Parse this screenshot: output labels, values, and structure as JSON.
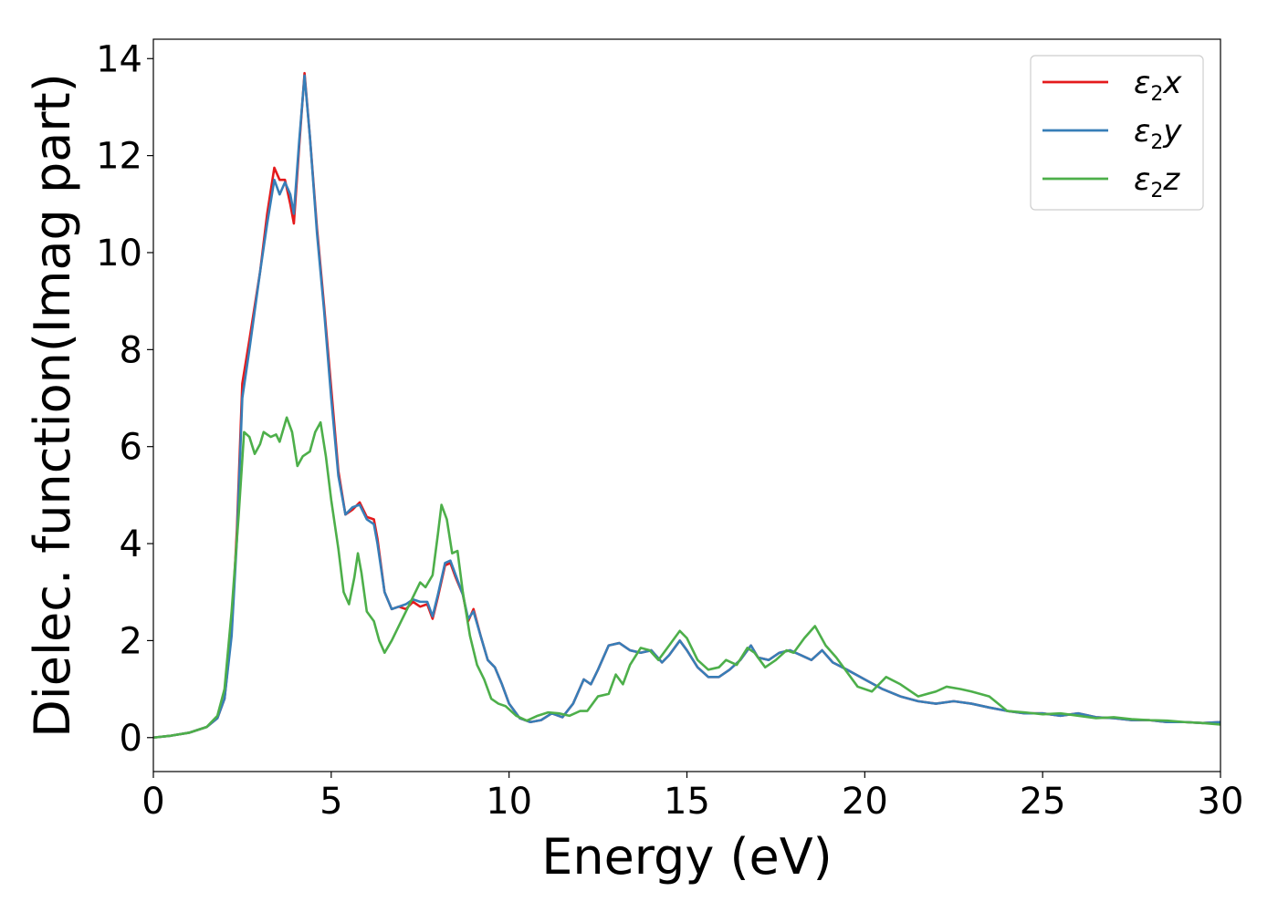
{
  "chart_data": {
    "type": "line",
    "title": "",
    "xlabel": "Energy (eV)",
    "ylabel": "Dielec. function(Imag part)",
    "xlim": [
      0,
      30
    ],
    "ylim": [
      -0.7,
      14.4
    ],
    "xticks": [
      0,
      5,
      10,
      15,
      20,
      25,
      30
    ],
    "yticks": [
      0,
      2,
      4,
      6,
      8,
      10,
      12,
      14
    ],
    "grid": false,
    "legend_position": "top-right",
    "series": [
      {
        "name": "ε2x",
        "legend_base": "ε",
        "legend_sub": "2",
        "legend_tail": "x",
        "color": "#e41a1c",
        "points": [
          [
            0,
            0
          ],
          [
            0.5,
            0.04
          ],
          [
            1.0,
            0.1
          ],
          [
            1.5,
            0.22
          ],
          [
            1.8,
            0.4
          ],
          [
            2.0,
            0.8
          ],
          [
            2.2,
            2.2
          ],
          [
            2.35,
            4.3
          ],
          [
            2.5,
            7.3
          ],
          [
            2.7,
            8.2
          ],
          [
            3.0,
            9.6
          ],
          [
            3.2,
            10.8
          ],
          [
            3.4,
            11.75
          ],
          [
            3.55,
            11.5
          ],
          [
            3.7,
            11.5
          ],
          [
            3.85,
            11.0
          ],
          [
            3.95,
            10.6
          ],
          [
            4.1,
            12.2
          ],
          [
            4.25,
            13.7
          ],
          [
            4.4,
            12.4
          ],
          [
            4.6,
            10.5
          ],
          [
            4.8,
            8.9
          ],
          [
            5.0,
            7.2
          ],
          [
            5.2,
            5.5
          ],
          [
            5.4,
            4.6
          ],
          [
            5.6,
            4.7
          ],
          [
            5.8,
            4.85
          ],
          [
            6.0,
            4.55
          ],
          [
            6.2,
            4.5
          ],
          [
            6.3,
            4.1
          ],
          [
            6.5,
            3.0
          ],
          [
            6.7,
            2.65
          ],
          [
            6.9,
            2.7
          ],
          [
            7.1,
            2.65
          ],
          [
            7.3,
            2.8
          ],
          [
            7.5,
            2.7
          ],
          [
            7.7,
            2.75
          ],
          [
            7.85,
            2.45
          ],
          [
            8.0,
            2.9
          ],
          [
            8.2,
            3.55
          ],
          [
            8.35,
            3.6
          ],
          [
            8.5,
            3.3
          ],
          [
            8.7,
            2.95
          ],
          [
            8.85,
            2.4
          ],
          [
            9.0,
            2.65
          ],
          [
            9.2,
            2.1
          ],
          [
            9.4,
            1.6
          ],
          [
            9.6,
            1.45
          ],
          [
            9.8,
            1.1
          ],
          [
            10.0,
            0.7
          ],
          [
            10.3,
            0.4
          ],
          [
            10.6,
            0.32
          ],
          [
            10.9,
            0.36
          ],
          [
            11.2,
            0.5
          ],
          [
            11.5,
            0.42
          ],
          [
            11.8,
            0.7
          ],
          [
            12.1,
            1.2
          ],
          [
            12.3,
            1.1
          ],
          [
            12.5,
            1.4
          ],
          [
            12.8,
            1.9
          ],
          [
            13.1,
            1.95
          ],
          [
            13.4,
            1.8
          ],
          [
            13.7,
            1.75
          ],
          [
            14.0,
            1.8
          ],
          [
            14.3,
            1.55
          ],
          [
            14.5,
            1.7
          ],
          [
            14.8,
            2.0
          ],
          [
            15.0,
            1.8
          ],
          [
            15.3,
            1.45
          ],
          [
            15.6,
            1.25
          ],
          [
            15.9,
            1.25
          ],
          [
            16.2,
            1.4
          ],
          [
            16.5,
            1.6
          ],
          [
            16.8,
            1.9
          ],
          [
            17.0,
            1.65
          ],
          [
            17.3,
            1.6
          ],
          [
            17.6,
            1.75
          ],
          [
            17.9,
            1.8
          ],
          [
            18.2,
            1.7
          ],
          [
            18.5,
            1.6
          ],
          [
            18.8,
            1.8
          ],
          [
            19.1,
            1.55
          ],
          [
            19.5,
            1.4
          ],
          [
            20.0,
            1.2
          ],
          [
            20.5,
            1.0
          ],
          [
            21.0,
            0.85
          ],
          [
            21.5,
            0.75
          ],
          [
            22.0,
            0.7
          ],
          [
            22.5,
            0.75
          ],
          [
            23.0,
            0.7
          ],
          [
            23.5,
            0.62
          ],
          [
            24.0,
            0.55
          ],
          [
            24.5,
            0.5
          ],
          [
            25.0,
            0.5
          ],
          [
            25.5,
            0.45
          ],
          [
            26.0,
            0.5
          ],
          [
            26.5,
            0.42
          ],
          [
            27.0,
            0.4
          ],
          [
            27.5,
            0.36
          ],
          [
            28.0,
            0.36
          ],
          [
            28.5,
            0.32
          ],
          [
            29.0,
            0.32
          ],
          [
            29.5,
            0.3
          ],
          [
            30.0,
            0.32
          ]
        ]
      },
      {
        "name": "ε2y",
        "legend_base": "ε",
        "legend_sub": "2",
        "legend_tail": "y",
        "color": "#377eb8",
        "points": [
          [
            0,
            0
          ],
          [
            0.5,
            0.04
          ],
          [
            1.0,
            0.1
          ],
          [
            1.5,
            0.22
          ],
          [
            1.8,
            0.4
          ],
          [
            2.0,
            0.8
          ],
          [
            2.2,
            2.1
          ],
          [
            2.35,
            4.1
          ],
          [
            2.5,
            7.0
          ],
          [
            2.7,
            8.0
          ],
          [
            3.0,
            9.6
          ],
          [
            3.2,
            10.6
          ],
          [
            3.4,
            11.5
          ],
          [
            3.55,
            11.2
          ],
          [
            3.7,
            11.45
          ],
          [
            3.85,
            11.2
          ],
          [
            3.95,
            10.8
          ],
          [
            4.1,
            12.3
          ],
          [
            4.25,
            13.65
          ],
          [
            4.4,
            12.4
          ],
          [
            4.6,
            10.4
          ],
          [
            4.8,
            8.8
          ],
          [
            5.0,
            7.0
          ],
          [
            5.2,
            5.4
          ],
          [
            5.4,
            4.6
          ],
          [
            5.6,
            4.75
          ],
          [
            5.8,
            4.8
          ],
          [
            6.0,
            4.5
          ],
          [
            6.2,
            4.4
          ],
          [
            6.3,
            4.0
          ],
          [
            6.5,
            3.0
          ],
          [
            6.7,
            2.65
          ],
          [
            6.9,
            2.7
          ],
          [
            7.1,
            2.75
          ],
          [
            7.3,
            2.85
          ],
          [
            7.5,
            2.8
          ],
          [
            7.7,
            2.8
          ],
          [
            7.85,
            2.5
          ],
          [
            8.0,
            2.95
          ],
          [
            8.2,
            3.6
          ],
          [
            8.35,
            3.65
          ],
          [
            8.5,
            3.35
          ],
          [
            8.7,
            2.95
          ],
          [
            8.85,
            2.45
          ],
          [
            9.0,
            2.6
          ],
          [
            9.2,
            2.1
          ],
          [
            9.4,
            1.6
          ],
          [
            9.6,
            1.45
          ],
          [
            9.8,
            1.1
          ],
          [
            10.0,
            0.7
          ],
          [
            10.3,
            0.4
          ],
          [
            10.6,
            0.32
          ],
          [
            10.9,
            0.36
          ],
          [
            11.2,
            0.5
          ],
          [
            11.5,
            0.42
          ],
          [
            11.8,
            0.7
          ],
          [
            12.1,
            1.2
          ],
          [
            12.3,
            1.1
          ],
          [
            12.5,
            1.4
          ],
          [
            12.8,
            1.9
          ],
          [
            13.1,
            1.95
          ],
          [
            13.4,
            1.8
          ],
          [
            13.7,
            1.75
          ],
          [
            14.0,
            1.8
          ],
          [
            14.3,
            1.55
          ],
          [
            14.5,
            1.7
          ],
          [
            14.8,
            2.0
          ],
          [
            15.0,
            1.8
          ],
          [
            15.3,
            1.45
          ],
          [
            15.6,
            1.25
          ],
          [
            15.9,
            1.25
          ],
          [
            16.2,
            1.4
          ],
          [
            16.5,
            1.6
          ],
          [
            16.8,
            1.9
          ],
          [
            17.0,
            1.65
          ],
          [
            17.3,
            1.6
          ],
          [
            17.6,
            1.75
          ],
          [
            17.9,
            1.8
          ],
          [
            18.2,
            1.7
          ],
          [
            18.5,
            1.6
          ],
          [
            18.8,
            1.8
          ],
          [
            19.1,
            1.55
          ],
          [
            19.5,
            1.4
          ],
          [
            20.0,
            1.2
          ],
          [
            20.5,
            1.0
          ],
          [
            21.0,
            0.85
          ],
          [
            21.5,
            0.75
          ],
          [
            22.0,
            0.7
          ],
          [
            22.5,
            0.75
          ],
          [
            23.0,
            0.7
          ],
          [
            23.5,
            0.62
          ],
          [
            24.0,
            0.55
          ],
          [
            24.5,
            0.5
          ],
          [
            25.0,
            0.5
          ],
          [
            25.5,
            0.45
          ],
          [
            26.0,
            0.5
          ],
          [
            26.5,
            0.42
          ],
          [
            27.0,
            0.4
          ],
          [
            27.5,
            0.36
          ],
          [
            28.0,
            0.36
          ],
          [
            28.5,
            0.32
          ],
          [
            29.0,
            0.32
          ],
          [
            29.5,
            0.3
          ],
          [
            30.0,
            0.32
          ]
        ]
      },
      {
        "name": "ε2z",
        "legend_base": "ε",
        "legend_sub": "2",
        "legend_tail": "z",
        "color": "#4daf4a",
        "points": [
          [
            0,
            0
          ],
          [
            0.5,
            0.04
          ],
          [
            1.0,
            0.1
          ],
          [
            1.5,
            0.22
          ],
          [
            1.8,
            0.45
          ],
          [
            2.0,
            1.0
          ],
          [
            2.2,
            2.6
          ],
          [
            2.4,
            4.6
          ],
          [
            2.55,
            6.3
          ],
          [
            2.7,
            6.2
          ],
          [
            2.85,
            5.85
          ],
          [
            3.0,
            6.05
          ],
          [
            3.1,
            6.3
          ],
          [
            3.3,
            6.2
          ],
          [
            3.45,
            6.25
          ],
          [
            3.55,
            6.1
          ],
          [
            3.75,
            6.6
          ],
          [
            3.9,
            6.3
          ],
          [
            4.05,
            5.6
          ],
          [
            4.2,
            5.8
          ],
          [
            4.4,
            5.9
          ],
          [
            4.55,
            6.3
          ],
          [
            4.7,
            6.5
          ],
          [
            4.85,
            5.8
          ],
          [
            5.0,
            4.9
          ],
          [
            5.2,
            3.9
          ],
          [
            5.35,
            3.0
          ],
          [
            5.5,
            2.75
          ],
          [
            5.65,
            3.3
          ],
          [
            5.75,
            3.8
          ],
          [
            5.85,
            3.4
          ],
          [
            6.0,
            2.6
          ],
          [
            6.2,
            2.4
          ],
          [
            6.35,
            2.0
          ],
          [
            6.5,
            1.75
          ],
          [
            6.7,
            2.0
          ],
          [
            6.9,
            2.3
          ],
          [
            7.1,
            2.6
          ],
          [
            7.3,
            2.9
          ],
          [
            7.5,
            3.2
          ],
          [
            7.65,
            3.1
          ],
          [
            7.85,
            3.35
          ],
          [
            8.0,
            4.2
          ],
          [
            8.1,
            4.8
          ],
          [
            8.25,
            4.5
          ],
          [
            8.4,
            3.8
          ],
          [
            8.55,
            3.85
          ],
          [
            8.7,
            3.0
          ],
          [
            8.9,
            2.1
          ],
          [
            9.1,
            1.5
          ],
          [
            9.3,
            1.2
          ],
          [
            9.5,
            0.8
          ],
          [
            9.7,
            0.7
          ],
          [
            9.9,
            0.65
          ],
          [
            10.2,
            0.45
          ],
          [
            10.5,
            0.35
          ],
          [
            10.8,
            0.45
          ],
          [
            11.1,
            0.52
          ],
          [
            11.4,
            0.5
          ],
          [
            11.7,
            0.45
          ],
          [
            12.0,
            0.55
          ],
          [
            12.2,
            0.55
          ],
          [
            12.5,
            0.85
          ],
          [
            12.8,
            0.9
          ],
          [
            13.0,
            1.3
          ],
          [
            13.2,
            1.1
          ],
          [
            13.4,
            1.5
          ],
          [
            13.7,
            1.85
          ],
          [
            13.95,
            1.8
          ],
          [
            14.2,
            1.6
          ],
          [
            14.5,
            1.9
          ],
          [
            14.8,
            2.2
          ],
          [
            15.0,
            2.05
          ],
          [
            15.3,
            1.6
          ],
          [
            15.6,
            1.4
          ],
          [
            15.9,
            1.45
          ],
          [
            16.1,
            1.6
          ],
          [
            16.4,
            1.5
          ],
          [
            16.7,
            1.85
          ],
          [
            16.9,
            1.75
          ],
          [
            17.2,
            1.45
          ],
          [
            17.5,
            1.6
          ],
          [
            17.8,
            1.8
          ],
          [
            18.0,
            1.75
          ],
          [
            18.3,
            2.05
          ],
          [
            18.6,
            2.3
          ],
          [
            18.9,
            1.9
          ],
          [
            19.2,
            1.65
          ],
          [
            19.5,
            1.35
          ],
          [
            19.8,
            1.05
          ],
          [
            20.2,
            0.95
          ],
          [
            20.6,
            1.25
          ],
          [
            21.0,
            1.1
          ],
          [
            21.5,
            0.85
          ],
          [
            22.0,
            0.95
          ],
          [
            22.3,
            1.05
          ],
          [
            22.7,
            1.0
          ],
          [
            23.0,
            0.95
          ],
          [
            23.5,
            0.85
          ],
          [
            24.0,
            0.55
          ],
          [
            24.5,
            0.52
          ],
          [
            25.0,
            0.48
          ],
          [
            25.5,
            0.5
          ],
          [
            26.0,
            0.45
          ],
          [
            26.5,
            0.4
          ],
          [
            27.0,
            0.42
          ],
          [
            27.5,
            0.38
          ],
          [
            28.0,
            0.36
          ],
          [
            28.5,
            0.35
          ],
          [
            29.0,
            0.32
          ],
          [
            29.5,
            0.3
          ],
          [
            30.0,
            0.27
          ]
        ]
      }
    ]
  }
}
